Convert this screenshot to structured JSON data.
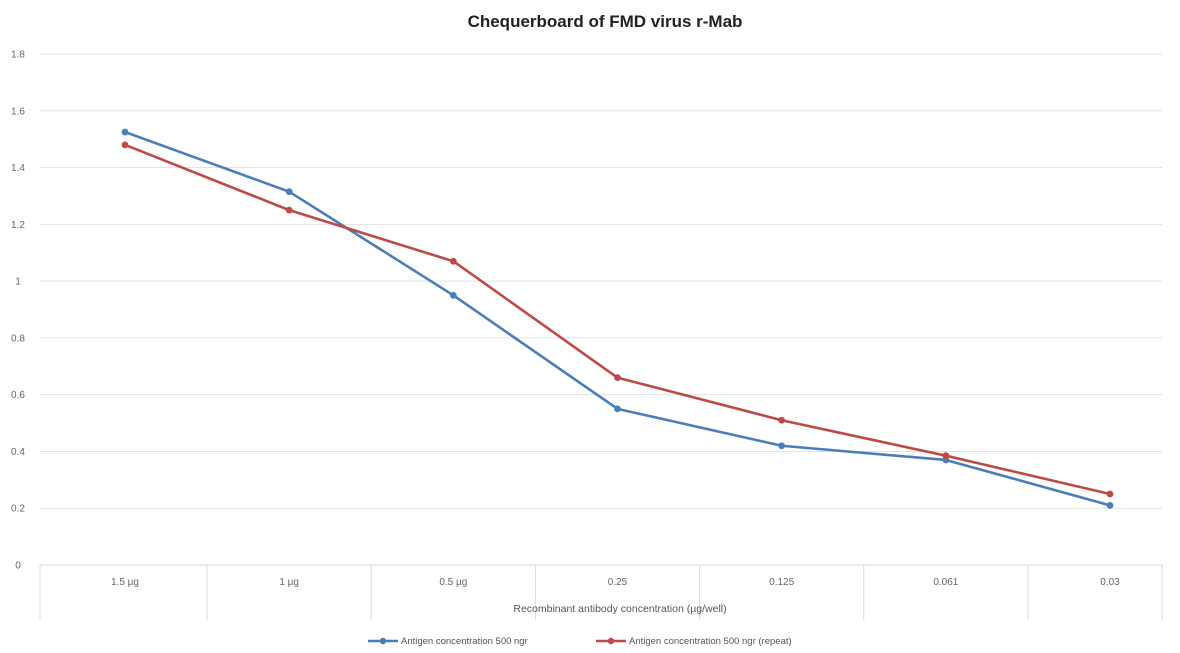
{
  "chart_data": {
    "type": "line",
    "title": "Chequerboard of FMD virus r-Mab",
    "xlabel": "Recombinant antibody concentration (µg/well)",
    "ylabel": "",
    "categories": [
      "1.5 µg",
      "1 µg",
      "0.5 µg",
      "0.25",
      "0.125",
      "0.061",
      "0.03"
    ],
    "y_ticks": [
      "0",
      "0.2",
      "0.4",
      "0.6",
      "0.8",
      "1",
      "1.2",
      "1.4",
      "1.6",
      "1.8"
    ],
    "ylim": [
      0,
      1.8
    ],
    "grid": true,
    "legend_position": "bottom",
    "series": [
      {
        "name": "Antigen concentration 500 ngr",
        "color": "#4a7ebb",
        "values": [
          1.525,
          1.315,
          0.95,
          0.55,
          0.42,
          0.37,
          0.21
        ]
      },
      {
        "name": "Antigen concentration 500 ngr (repeat)",
        "color": "#be4b48",
        "values": [
          1.48,
          1.25,
          1.07,
          0.66,
          0.51,
          0.385,
          0.25
        ]
      }
    ]
  }
}
